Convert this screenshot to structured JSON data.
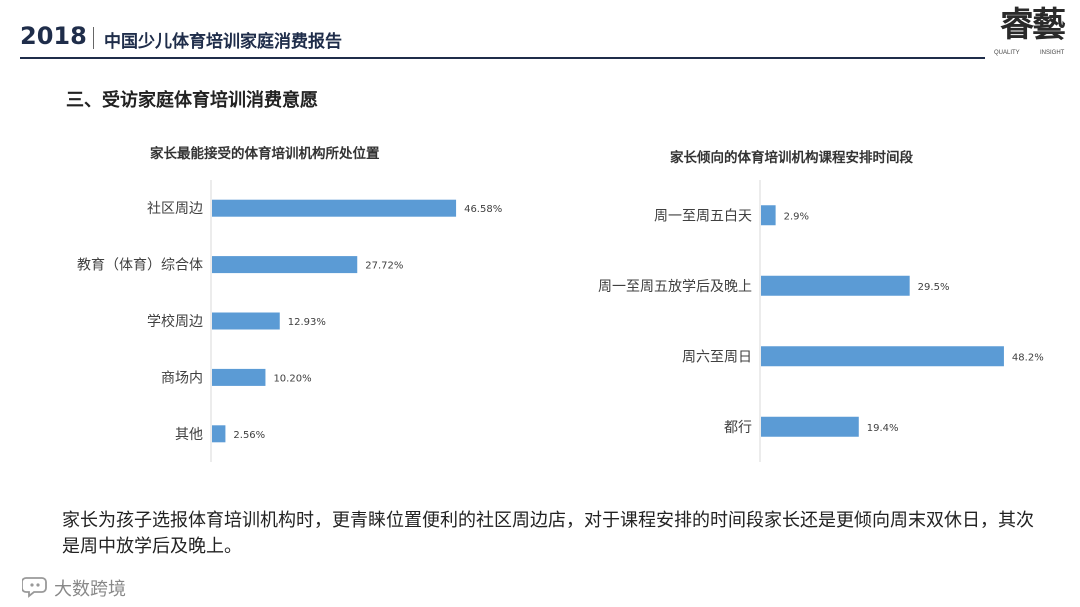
{
  "header": {
    "year": "2018",
    "title": "中国少儿体育培训家庭消费报告",
    "logo_text": "睿藝",
    "logo_sub_left": "QUALITY",
    "logo_sub_right": "INSIGHT"
  },
  "section_title": "三、受访家庭体育培训消费意愿",
  "colors": {
    "bar": "#5b9bd5",
    "axis": "#d9d9d9",
    "header": "#1f2d4a"
  },
  "chart_data": [
    {
      "type": "bar",
      "orientation": "horizontal",
      "title": "家长最能接受的体育培训机构所处位置",
      "categories": [
        "社区周边",
        "教育（体育）综合体",
        "学校周边",
        "商场内",
        "其他"
      ],
      "values": [
        46.58,
        27.72,
        12.93,
        10.2,
        2.56
      ],
      "labels": [
        "46.58%",
        "27.72%",
        "12.93%",
        "10.20%",
        "2.56%"
      ],
      "xlim": [
        0,
        50
      ],
      "grid": false
    },
    {
      "type": "bar",
      "orientation": "horizontal",
      "title": "家长倾向的体育培训机构课程安排时间段",
      "categories": [
        "周一至周五白天",
        "周一至周五放学后及晚上",
        "周六至周日",
        "都行"
      ],
      "values": [
        2.9,
        29.5,
        48.2,
        19.4
      ],
      "labels": [
        "2.9%",
        "29.5%",
        "48.2%",
        "19.4%"
      ],
      "xlim": [
        0,
        50
      ],
      "grid": false
    }
  ],
  "summary": "家长为孩子选报体育培训机构时，更青睐位置便利的社区周边店，对于课程安排的时间段家长还是更倾向周末双休日，其次是周中放学后及晚上。",
  "footer": {
    "brand": "大数跨境",
    "icon": "chat-bubble-icon"
  }
}
